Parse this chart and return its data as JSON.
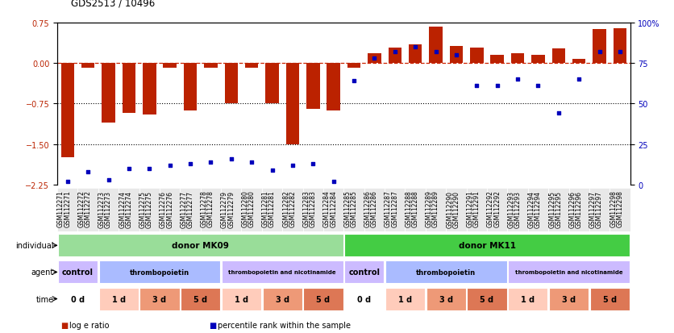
{
  "title": "GDS2513 / 10496",
  "samples": [
    "GSM112271",
    "GSM112272",
    "GSM112273",
    "GSM112274",
    "GSM112275",
    "GSM112276",
    "GSM112277",
    "GSM112278",
    "GSM112279",
    "GSM112280",
    "GSM112281",
    "GSM112282",
    "GSM112283",
    "GSM112284",
    "GSM112285",
    "GSM112286",
    "GSM112287",
    "GSM112288",
    "GSM112289",
    "GSM112290",
    "GSM112291",
    "GSM112292",
    "GSM112293",
    "GSM112294",
    "GSM112295",
    "GSM112296",
    "GSM112297",
    "GSM112298"
  ],
  "log_ratio": [
    -1.75,
    -0.08,
    -1.1,
    -0.92,
    -0.95,
    -0.08,
    -0.88,
    -0.08,
    -0.75,
    -0.08,
    -0.75,
    -1.5,
    -0.85,
    -0.88,
    -0.08,
    0.18,
    0.28,
    0.35,
    0.68,
    0.32,
    0.28,
    0.15,
    0.18,
    0.15,
    0.27,
    0.08,
    0.63,
    0.65
  ],
  "percentile": [
    2,
    8,
    3,
    10,
    10,
    12,
    13,
    14,
    16,
    14,
    9,
    12,
    13,
    2,
    64,
    78,
    82,
    85,
    82,
    80,
    61,
    61,
    65,
    61,
    44,
    65,
    82,
    82
  ],
  "ylim_left": [
    -2.25,
    0.75
  ],
  "ylim_right": [
    0,
    100
  ],
  "yticks_left": [
    0.75,
    0.0,
    -0.75,
    -1.5,
    -2.25
  ],
  "yticks_right": [
    100,
    75,
    50,
    25,
    0
  ],
  "hlines_dotted": [
    -0.75,
    -1.5
  ],
  "bar_color": "#bb2200",
  "dot_color": "#0000bb",
  "zero_line_color": "#cc2200",
  "individual_data": [
    {
      "label": "donor MK09",
      "start": 0,
      "end": 14,
      "color": "#99dd99"
    },
    {
      "label": "donor MK11",
      "start": 14,
      "end": 28,
      "color": "#44cc44"
    }
  ],
  "agent_data": [
    {
      "label": "control",
      "start": 0,
      "end": 2,
      "color": "#ccbbff"
    },
    {
      "label": "thrombopoietin",
      "start": 2,
      "end": 8,
      "color": "#aabbff"
    },
    {
      "label": "thrombopoietin and nicotinamide",
      "start": 8,
      "end": 14,
      "color": "#ccbbff"
    },
    {
      "label": "control",
      "start": 14,
      "end": 16,
      "color": "#ccbbff"
    },
    {
      "label": "thrombopoietin",
      "start": 16,
      "end": 22,
      "color": "#aabbff"
    },
    {
      "label": "thrombopoietin and nicotinamide",
      "start": 22,
      "end": 28,
      "color": "#ccbbff"
    }
  ],
  "time_data": [
    {
      "label": "0 d",
      "start": 0,
      "end": 2,
      "color": "#ffffff"
    },
    {
      "label": "1 d",
      "start": 2,
      "end": 4,
      "color": "#ffccbb"
    },
    {
      "label": "3 d",
      "start": 4,
      "end": 6,
      "color": "#ee9977"
    },
    {
      "label": "5 d",
      "start": 6,
      "end": 8,
      "color": "#dd7755"
    },
    {
      "label": "1 d",
      "start": 8,
      "end": 10,
      "color": "#ffccbb"
    },
    {
      "label": "3 d",
      "start": 10,
      "end": 12,
      "color": "#ee9977"
    },
    {
      "label": "5 d",
      "start": 12,
      "end": 14,
      "color": "#dd7755"
    },
    {
      "label": "0 d",
      "start": 14,
      "end": 16,
      "color": "#ffffff"
    },
    {
      "label": "1 d",
      "start": 16,
      "end": 18,
      "color": "#ffccbb"
    },
    {
      "label": "3 d",
      "start": 18,
      "end": 20,
      "color": "#ee9977"
    },
    {
      "label": "5 d",
      "start": 20,
      "end": 22,
      "color": "#dd7755"
    },
    {
      "label": "1 d",
      "start": 22,
      "end": 24,
      "color": "#ffccbb"
    },
    {
      "label": "3 d",
      "start": 24,
      "end": 26,
      "color": "#ee9977"
    },
    {
      "label": "5 d",
      "start": 26,
      "end": 28,
      "color": "#dd7755"
    }
  ],
  "legend_items": [
    {
      "label": "log e ratio",
      "color": "#bb2200",
      "marker": "s"
    },
    {
      "label": "percentile rank within the sample",
      "color": "#0000bb",
      "marker": "s"
    }
  ]
}
